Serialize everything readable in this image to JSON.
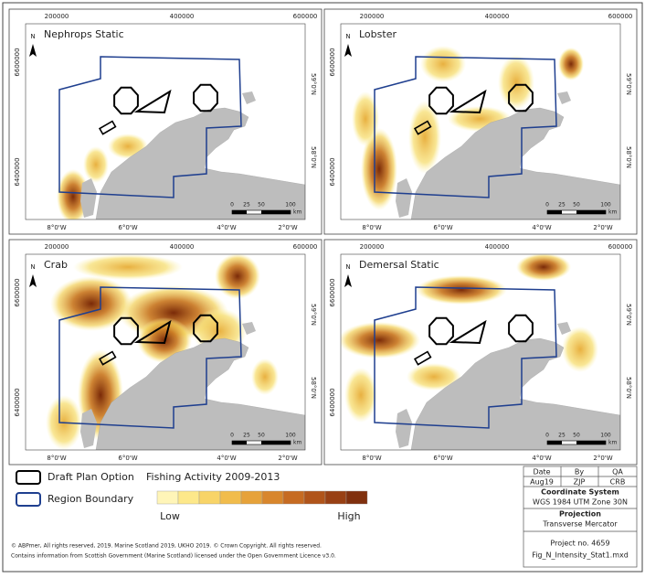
{
  "panels": [
    {
      "title": "Nephrops Static"
    },
    {
      "title": "Lobster"
    },
    {
      "title": "Crab"
    },
    {
      "title": "Demersal Static"
    }
  ],
  "north_label": "N",
  "axes": {
    "eastings": [
      "200000",
      "400000",
      "600000"
    ],
    "northings": [
      "6600000",
      "6400000"
    ],
    "longitudes": [
      "8°0'W",
      "6°0'W",
      "4°0'W",
      "2°0'W"
    ],
    "latitudes": [
      "59°0'N",
      "58°0'N"
    ]
  },
  "scale_bar": {
    "ticks": [
      "0",
      "25",
      "50",
      "100"
    ],
    "unit": "km"
  },
  "legend": {
    "draft_plan": "Draft Plan Option",
    "region": "Region Boundary",
    "fishing_title": "Fishing Activity 2009-2013",
    "low": "Low",
    "high": "High"
  },
  "credits": [
    "© ABPmer, All rights reserved, 2019. Marine Scotland 2019, UKHO 2019. © Crown Copyright. All rights reserved.",
    "Contains information from Scottish Government (Marine Scotland) licensed under the Open Government Licence v3.0."
  ],
  "info_table": {
    "headers": [
      "Date",
      "By",
      "QA"
    ],
    "row": [
      "Aug19",
      "ZJP",
      "CRB"
    ],
    "coordinate_system_label": "Coordinate System",
    "coordinate_system": "WGS 1984 UTM Zone 30N",
    "projection_label": "Projection",
    "projection": "Transverse Mercator",
    "project_no": "Project no. 4659",
    "file": "Fig_N_Intensity_Stat1.mxd"
  }
}
